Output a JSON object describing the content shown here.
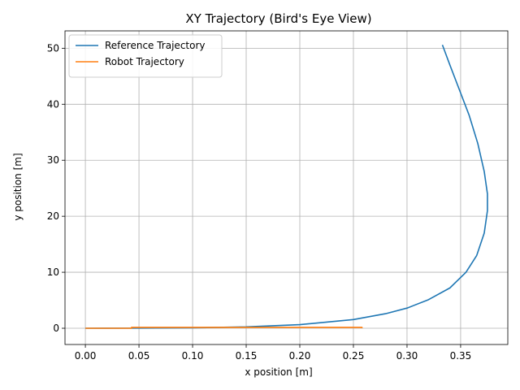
{
  "chart_data": {
    "type": "line",
    "title": "XY Trajectory (Bird's Eye View)",
    "xlabel": "x position [m]",
    "ylabel": "y position [m]",
    "xlim": [
      -0.019,
      0.394
    ],
    "ylim": [
      -2.9,
      53.1
    ],
    "xticks": [
      0.0,
      0.05,
      0.1,
      0.15,
      0.2,
      0.25,
      0.3,
      0.35
    ],
    "xtick_labels": [
      "0.00",
      "0.05",
      "0.10",
      "0.15",
      "0.20",
      "0.25",
      "0.30",
      "0.35"
    ],
    "yticks": [
      0,
      10,
      20,
      30,
      40,
      50
    ],
    "ytick_labels": [
      "0",
      "10",
      "20",
      "30",
      "40",
      "50"
    ],
    "grid": true,
    "legend_position": "top-left",
    "series": [
      {
        "name": "Reference Trajectory",
        "color": "#1f77b4",
        "points": [
          [
            0.0,
            0.0
          ],
          [
            0.05,
            0.02
          ],
          [
            0.1,
            0.08
          ],
          [
            0.15,
            0.25
          ],
          [
            0.2,
            0.65
          ],
          [
            0.25,
            1.55
          ],
          [
            0.28,
            2.6
          ],
          [
            0.3,
            3.6
          ],
          [
            0.32,
            5.1
          ],
          [
            0.34,
            7.2
          ],
          [
            0.355,
            10.0
          ],
          [
            0.365,
            13.0
          ],
          [
            0.372,
            17.0
          ],
          [
            0.375,
            21.0
          ],
          [
            0.375,
            24.0
          ],
          [
            0.372,
            28.0
          ],
          [
            0.366,
            33.0
          ],
          [
            0.358,
            38.0
          ],
          [
            0.348,
            43.0
          ],
          [
            0.34,
            47.0
          ],
          [
            0.333,
            50.6
          ]
        ]
      },
      {
        "name": "Robot Trajectory",
        "color": "#ff7f0e",
        "points": [
          [
            0.0,
            0.0
          ],
          [
            0.043,
            0.0
          ],
          [
            0.043,
            0.15
          ],
          [
            0.1,
            0.15
          ],
          [
            0.15,
            0.15
          ],
          [
            0.2,
            0.15
          ],
          [
            0.258,
            0.15
          ],
          [
            0.258,
            0.0
          ]
        ]
      }
    ]
  }
}
